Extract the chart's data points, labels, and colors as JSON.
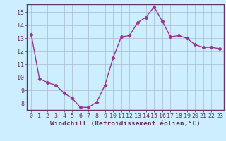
{
  "x": [
    0,
    1,
    2,
    3,
    4,
    5,
    6,
    7,
    8,
    9,
    10,
    11,
    12,
    13,
    14,
    15,
    16,
    17,
    18,
    19,
    20,
    21,
    22,
    23
  ],
  "y": [
    13.3,
    9.9,
    9.6,
    9.4,
    8.8,
    8.4,
    7.7,
    7.7,
    8.1,
    9.4,
    11.5,
    13.1,
    13.2,
    14.2,
    14.6,
    15.4,
    14.3,
    13.1,
    13.2,
    13.0,
    12.5,
    12.3,
    12.3,
    12.2
  ],
  "line_color": "#993399",
  "marker": "D",
  "marker_size": 2.2,
  "bg_color": "#cceeff",
  "grid_color": "#aabbcc",
  "xlabel": "Windchill (Refroidissement éolien,°C)",
  "xlabel_fontsize": 6.8,
  "ylim_min": 7.5,
  "ylim_max": 15.6,
  "yticks": [
    8,
    9,
    10,
    11,
    12,
    13,
    14,
    15
  ],
  "xticks": [
    0,
    1,
    2,
    3,
    4,
    5,
    6,
    7,
    8,
    9,
    10,
    11,
    12,
    13,
    14,
    15,
    16,
    17,
    18,
    19,
    20,
    21,
    22,
    23
  ],
  "tick_fontsize": 6.0,
  "line_color_spine": "#663366",
  "lw": 1.0
}
